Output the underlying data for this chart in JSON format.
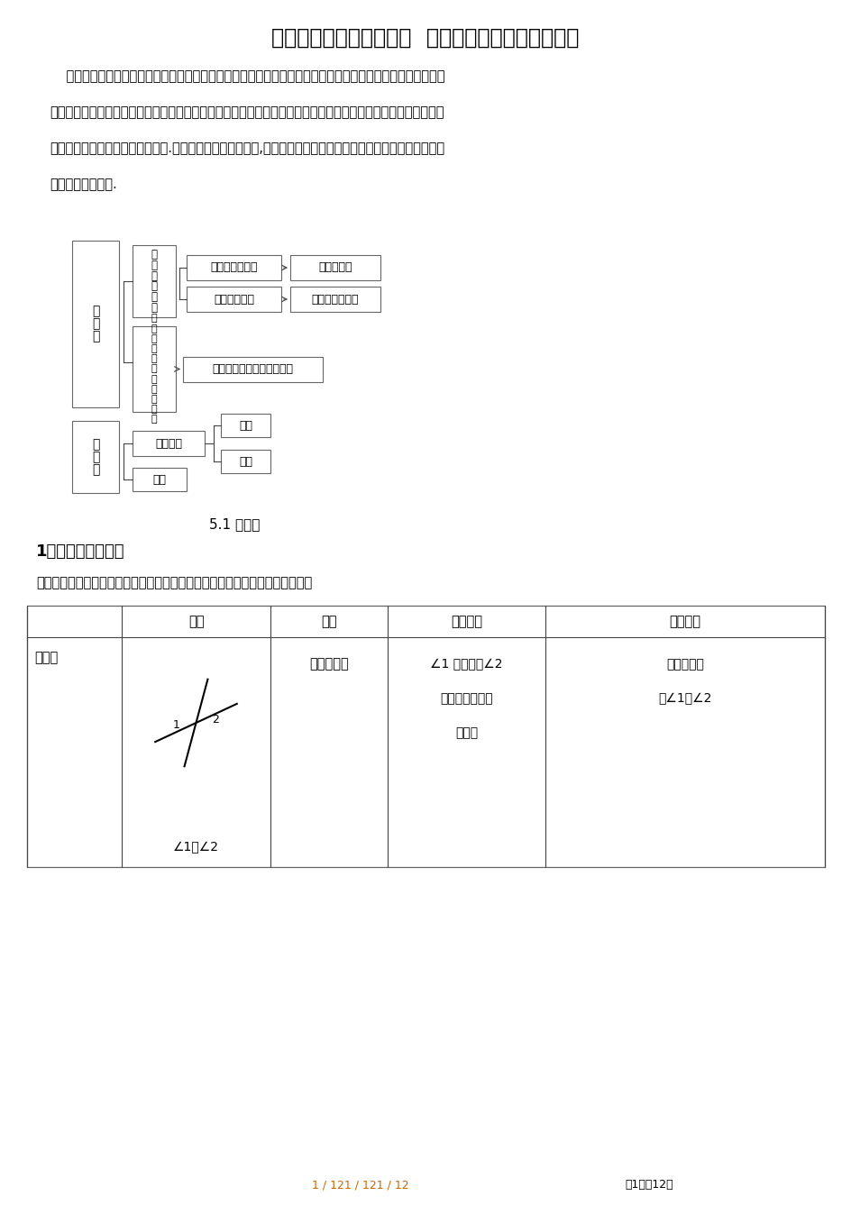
{
  "title": "人教版初中数学七年级下  相交线和平行线知识点总结",
  "intro_line1": "    本章使学生了解在平面内不重合的两条直线相交与平行的两种位置关系，研究了两条直线相交时的形成的角的",
  "intro_line2": "特征，两条直线互相垂直所具有的特性，两条直线平行的长期共存条件和它所有的特征以及有关图形平移变换的性",
  "intro_line3": "质，利用平移设计一些优美的图案.。重点：垂线和它的性质,平行线的判定方法和它的性质，平移和它的性质，以",
  "intro_line4": "及这些的组织运用.",
  "section_label": "5.1 相交线",
  "section1_title": "1、邻补角与对顶角",
  "table_intro": "两直线相交所成的四个角中存在几种不同关系的角，它们的概念及性质如下表：",
  "table_headers": [
    "",
    "图形",
    "顶点",
    "边的关系",
    "大小关系"
  ],
  "row1_col1": "对顶角",
  "row1_col3": "有公共顶点",
  "row1_col4_line1": "∠1 的两边与∠2",
  "row1_col4_line2": "的两边互为反向",
  "row1_col4_line3": "延长线",
  "row1_col5_line1": "对顶角相等",
  "row1_col5_line2": "即∠1＝∠2",
  "row1_fig_label": "∠1与∠2",
  "page_footer": "1 / 121 / 121 / 12",
  "page_num": "第1页共12页",
  "bg_color": "#ffffff",
  "text_color": "#000000",
  "footer_color": "#cc6600"
}
